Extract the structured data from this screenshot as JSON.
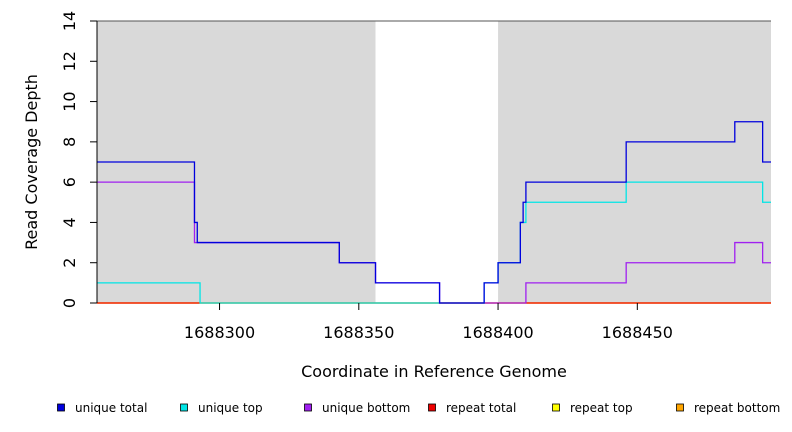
{
  "chart_data": {
    "type": "line",
    "title": "",
    "xlabel": "Coordinate in Reference Genome",
    "ylabel": "Read Coverage Depth",
    "xlim": [
      1688256,
      1688498
    ],
    "ylim": [
      0,
      14
    ],
    "x_ticks": [
      1688300,
      1688350,
      1688400,
      1688450
    ],
    "y_ticks": [
      0,
      2,
      4,
      6,
      8,
      10,
      12,
      14
    ],
    "shaded_regions": [
      {
        "x": [
          1688256,
          1688356
        ]
      },
      {
        "x": [
          1688400,
          1688498
        ]
      }
    ],
    "shade_color": "#d9d9d9",
    "legend_position": "bottom",
    "series": [
      {
        "name": "unique total",
        "color": "#0000dd",
        "steps": [
          [
            1688256,
            7
          ],
          [
            1688291,
            4
          ],
          [
            1688292,
            3
          ],
          [
            1688343,
            2
          ],
          [
            1688356,
            1
          ],
          [
            1688379,
            0
          ],
          [
            1688395,
            1
          ],
          [
            1688400,
            2
          ],
          [
            1688408,
            4
          ],
          [
            1688409,
            5
          ],
          [
            1688410,
            6
          ],
          [
            1688446,
            8
          ],
          [
            1688485,
            9
          ],
          [
            1688495,
            7
          ],
          [
            1688498,
            7
          ]
        ]
      },
      {
        "name": "unique top",
        "color": "#00e5e5",
        "steps": [
          [
            1688256,
            1
          ],
          [
            1688293,
            0
          ],
          [
            1688395,
            1
          ],
          [
            1688400,
            2
          ],
          [
            1688408,
            4
          ],
          [
            1688410,
            5
          ],
          [
            1688446,
            6
          ],
          [
            1688495,
            5
          ],
          [
            1688498,
            5
          ]
        ]
      },
      {
        "name": "unique bottom",
        "color": "#a020f0",
        "steps": [
          [
            1688256,
            6
          ],
          [
            1688291,
            3
          ],
          [
            1688292,
            3
          ],
          [
            1688343,
            2
          ],
          [
            1688356,
            1
          ],
          [
            1688379,
            0
          ],
          [
            1688410,
            1
          ],
          [
            1688446,
            2
          ],
          [
            1688485,
            3
          ],
          [
            1688495,
            2
          ],
          [
            1688498,
            2
          ]
        ]
      },
      {
        "name": "repeat total",
        "color": "#ee0000",
        "steps": [
          [
            1688256,
            0
          ],
          [
            1688498,
            0
          ]
        ]
      },
      {
        "name": "repeat top",
        "color": "#ffff00",
        "steps": [
          [
            1688256,
            0
          ],
          [
            1688498,
            0
          ]
        ]
      },
      {
        "name": "repeat bottom",
        "color": "#ffa500",
        "steps": [
          [
            1688256,
            0
          ],
          [
            1688498,
            0
          ]
        ]
      }
    ]
  }
}
